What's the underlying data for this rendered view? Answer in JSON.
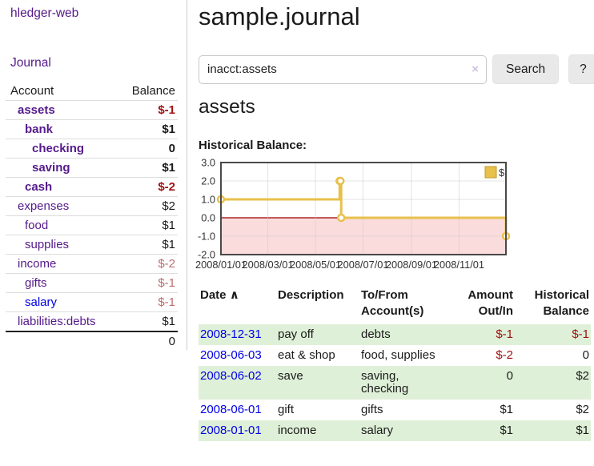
{
  "theme": {
    "link_purple": "#551a8b",
    "link_blue": "#0000e6",
    "negative_strong": "#a01313",
    "negative_soft": "#bb6d6d",
    "row_green": "#dff0d8"
  },
  "sidebar": {
    "brand": "hledger-web",
    "journal_label": "Journal",
    "accounts_table": {
      "headers": {
        "account": "Account",
        "balance": "Balance"
      },
      "rows": [
        {
          "account": "assets",
          "balance": "$-1",
          "indent": 0,
          "bold": true,
          "link_style": "purple",
          "balance_style": "neg-strong"
        },
        {
          "account": "bank",
          "balance": "$1",
          "indent": 1,
          "bold": true,
          "link_style": "purple",
          "balance_style": ""
        },
        {
          "account": "checking",
          "balance": "0",
          "indent": 2,
          "bold": true,
          "link_style": "purple",
          "balance_style": ""
        },
        {
          "account": "saving",
          "balance": "$1",
          "indent": 2,
          "bold": true,
          "link_style": "purple",
          "balance_style": ""
        },
        {
          "account": "cash",
          "balance": "$-2",
          "indent": 1,
          "bold": true,
          "link_style": "purple",
          "balance_style": "neg-strong"
        },
        {
          "account": "expenses",
          "balance": "$2",
          "indent": 0,
          "bold": false,
          "link_style": "purple",
          "balance_style": ""
        },
        {
          "account": "food",
          "balance": "$1",
          "indent": 1,
          "bold": false,
          "link_style": "purple",
          "balance_style": ""
        },
        {
          "account": "supplies",
          "balance": "$1",
          "indent": 1,
          "bold": false,
          "link_style": "purple",
          "balance_style": ""
        },
        {
          "account": "income",
          "balance": "$-2",
          "indent": 0,
          "bold": false,
          "link_style": "purple",
          "balance_style": "neg-soft"
        },
        {
          "account": "gifts",
          "balance": "$-1",
          "indent": 1,
          "bold": false,
          "link_style": "purple",
          "balance_style": "neg-soft"
        },
        {
          "account": "salary",
          "balance": "$-1",
          "indent": 1,
          "bold": false,
          "link_style": "blue",
          "balance_style": "neg-soft"
        },
        {
          "account": "liabilities:debts",
          "balance": "$1",
          "indent": 0,
          "bold": false,
          "link_style": "purple",
          "balance_style": ""
        }
      ],
      "total": "0"
    }
  },
  "main": {
    "title": "sample.journal",
    "search": {
      "value": "inacct:assets",
      "clear_icon": "×",
      "button_label": "Search",
      "help_label": "?"
    },
    "account_heading": "assets",
    "chart_label": "Historical Balance:"
  },
  "chart_data": {
    "type": "line",
    "step": true,
    "title": "Historical Balance",
    "series": [
      {
        "name": "$",
        "color": "#e8c04c",
        "points": [
          {
            "x": "2008-01-01",
            "y": 1
          },
          {
            "x": "2008-06-01",
            "y": 2
          },
          {
            "x": "2008-06-02",
            "y": 2
          },
          {
            "x": "2008-06-03",
            "y": 0
          },
          {
            "x": "2008-12-31",
            "y": -1
          }
        ]
      }
    ],
    "x_range": [
      "2008-01-01",
      "2008-12-31"
    ],
    "x_tick_labels": [
      "2008/01/01",
      "2008/03/01",
      "2008/05/01",
      "2008/07/01",
      "2008/09/01",
      "2008/11/01"
    ],
    "y_ticks": [
      3,
      2,
      1,
      0,
      -1,
      -2
    ],
    "y_tick_labels": [
      "3.0",
      "2.0",
      "1.0",
      "0.0",
      "-1.0",
      "-2.0"
    ],
    "ylim": [
      -2,
      3
    ],
    "legend": {
      "label": "$",
      "position": "top-right"
    },
    "grid": true,
    "colors": {
      "negative_region": "#fbdcdc",
      "zero_line": "#990000",
      "gridline": "#cccccc",
      "border": "#4a4a4a",
      "legend_square_border": "#c4992b"
    }
  },
  "register": {
    "headers": {
      "date": "Date",
      "sort_icon": "∧",
      "description": "Description",
      "tofrom_line1": "To/From",
      "tofrom_line2": "Account(s)",
      "amount_line1": "Amount",
      "amount_line2": "Out/In",
      "balance_line1": "Historical",
      "balance_line2": "Balance"
    },
    "rows": [
      {
        "date": "2008-12-31",
        "description": "pay off",
        "accounts": "debts",
        "amount": "$-1",
        "amount_negative": true,
        "balance": "$-1",
        "balance_negative": true
      },
      {
        "date": "2008-06-03",
        "description": "eat & shop",
        "accounts": "food, supplies",
        "amount": "$-2",
        "amount_negative": true,
        "balance": "0",
        "balance_negative": false
      },
      {
        "date": "2008-06-02",
        "description": "save",
        "accounts": "saving, checking",
        "amount": "0",
        "amount_negative": false,
        "balance": "$2",
        "balance_negative": false
      },
      {
        "date": "2008-06-01",
        "description": "gift",
        "accounts": "gifts",
        "amount": "$1",
        "amount_negative": false,
        "balance": "$2",
        "balance_negative": false
      },
      {
        "date": "2008-01-01",
        "description": "income",
        "accounts": "salary",
        "amount": "$1",
        "amount_negative": false,
        "balance": "$1",
        "balance_negative": false
      }
    ]
  }
}
